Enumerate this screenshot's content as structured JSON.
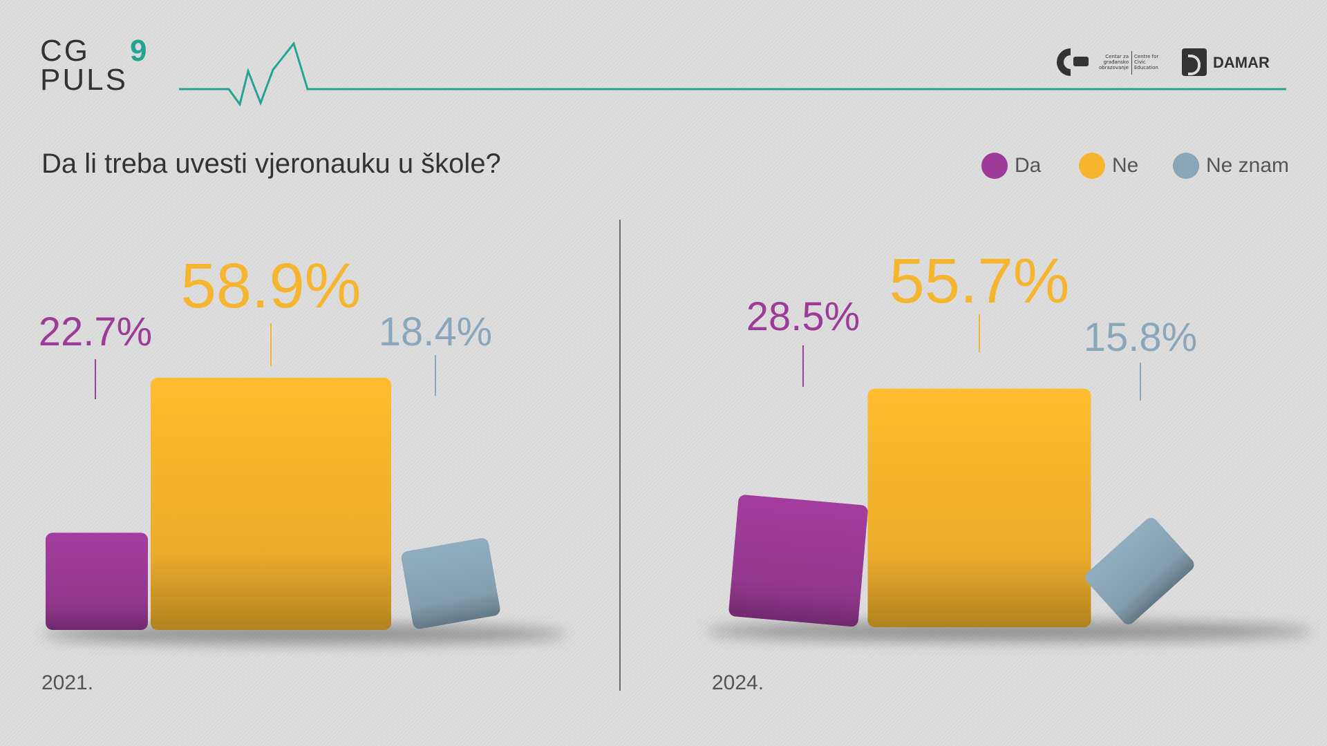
{
  "branding": {
    "cg": "CG",
    "num": "9",
    "puls": "PULS",
    "partner1_line1": "Centar za građansko obrazovanje",
    "partner1_line2": "Centre for Civic Education",
    "partner2": "DAMAR"
  },
  "chart_title": "Da li treba uvesti vjeronauku u škole?",
  "legend": [
    {
      "label": "Da",
      "color": "#9c3b98"
    },
    {
      "label": "Ne",
      "color": "#f6b52e"
    },
    {
      "label": "Ne znam",
      "color": "#8aa6b9"
    }
  ],
  "chart_data": [
    {
      "type": "bar",
      "title": "2021.",
      "categories": [
        "Da",
        "Ne",
        "Ne znam"
      ],
      "values": [
        22.7,
        58.9,
        18.4
      ],
      "labels": [
        "22.7%",
        "58.9%",
        "18.4%"
      ],
      "colors": [
        "#9c3b98",
        "#f6b52e",
        "#8aa6b9"
      ]
    },
    {
      "type": "bar",
      "title": "2024.",
      "categories": [
        "Da",
        "Ne",
        "Ne znam"
      ],
      "values": [
        28.5,
        55.7,
        15.8
      ],
      "labels": [
        "28.5%",
        "55.7%",
        "15.8%"
      ],
      "colors": [
        "#9c3b98",
        "#f6b52e",
        "#8aa6b9"
      ]
    }
  ]
}
